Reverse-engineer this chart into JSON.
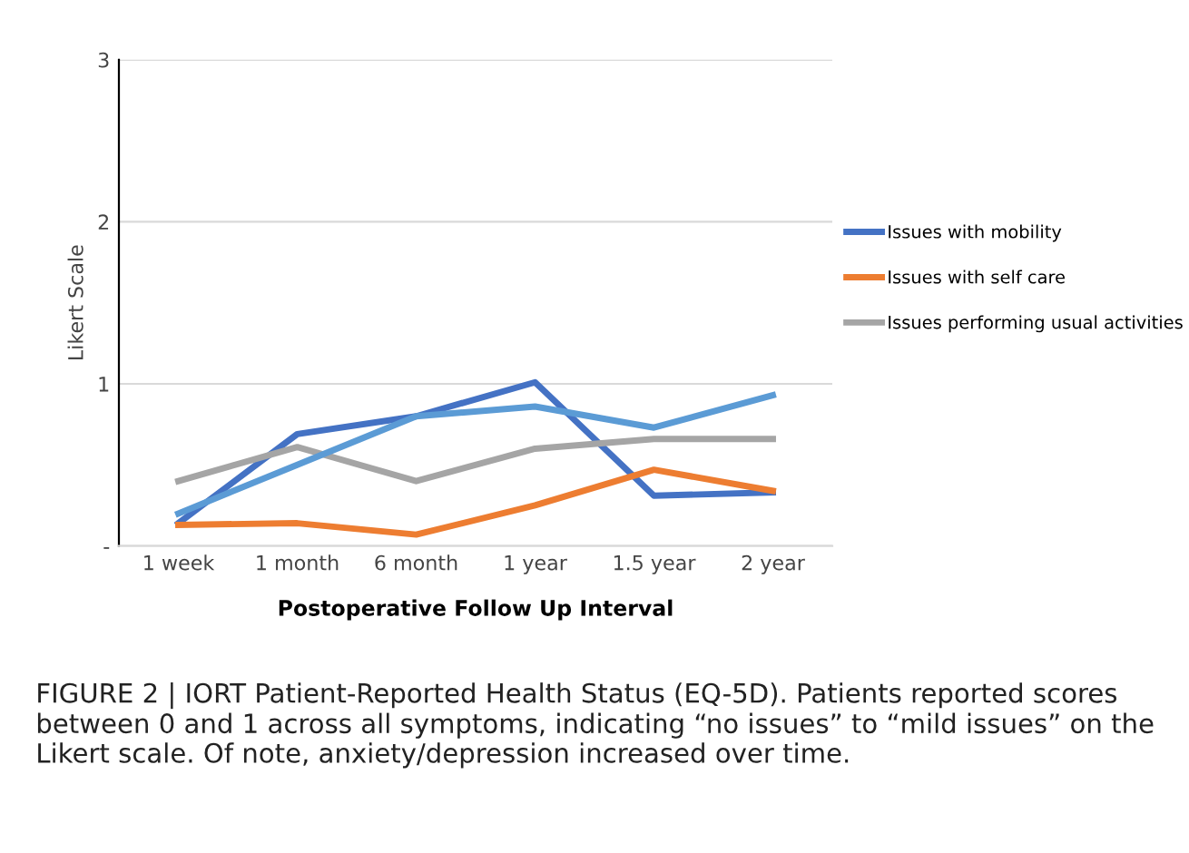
{
  "chart_data": {
    "type": "line",
    "xlabel": "Postoperative Follow Up Interval",
    "ylabel": "Likert Scale",
    "categories": [
      "1 week",
      "1 month",
      "6 month",
      "1 year",
      "1.5 year",
      "2 year"
    ],
    "series": [
      {
        "name": "Issues with mobility",
        "color": "#4472c4",
        "values": [
          0.14,
          0.69,
          0.8,
          1.01,
          0.31,
          0.33
        ]
      },
      {
        "name": "Issues with self care",
        "color": "#ed7d31",
        "values": [
          0.13,
          0.14,
          0.07,
          0.25,
          0.47,
          0.34
        ]
      },
      {
        "name": "Issues performing usual activities",
        "color": "#a5a5a5",
        "values": [
          0.4,
          0.61,
          0.4,
          0.6,
          0.66,
          0.66
        ]
      },
      {
        "color": "#5b9bd5",
        "values": [
          0.2,
          0.5,
          0.8,
          0.86,
          0.73,
          0.93
        ]
      }
    ],
    "ylim": [
      0,
      3
    ],
    "yticks": [
      {
        "value": 0,
        "label": "-"
      },
      1,
      2,
      3
    ],
    "grid": "y",
    "legend": "right",
    "line_style": "solid",
    "marker": "none",
    "annotations": [
      "FIGURE 2 | IORT Patient-Reported Health Status (EQ-5D). Patients reported scores between 0 and 1 across all symptoms, indicating “no issues” to “mild issues” on the Likert scale. Of note, anxiety/depression increased over time."
    ]
  }
}
